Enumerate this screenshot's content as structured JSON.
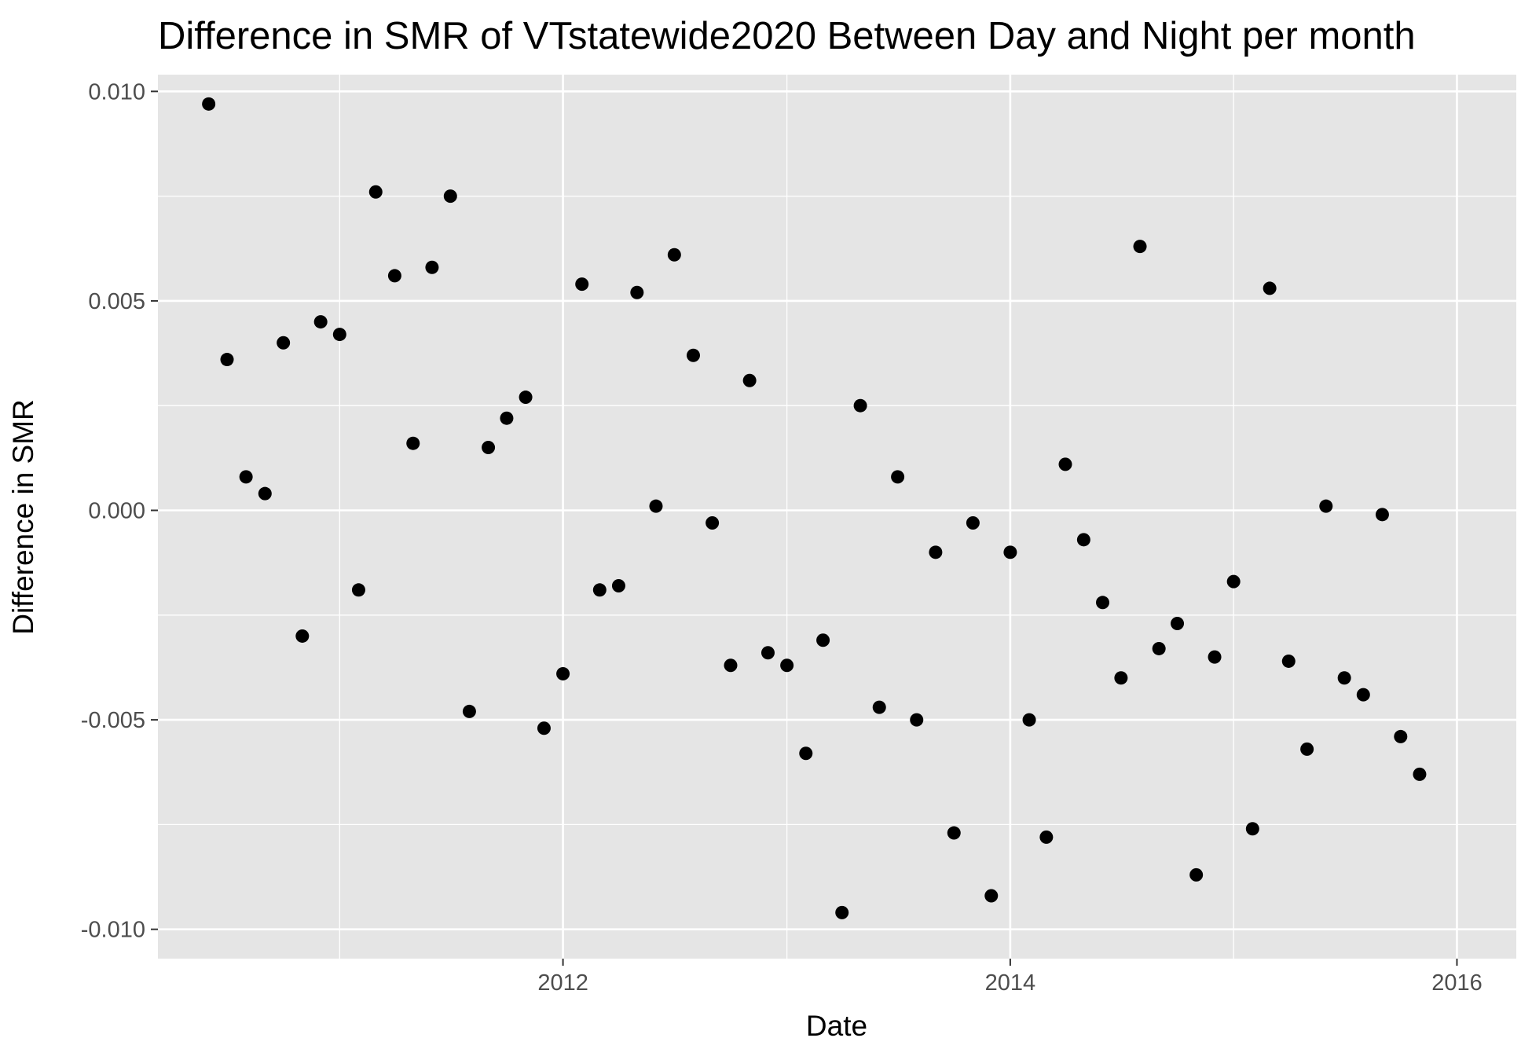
{
  "chart_data": {
    "type": "scatter",
    "title": "Difference in SMR of VTstatewide2020 Between Day and Night per month",
    "xlabel": "Date",
    "ylabel": "Difference in SMR",
    "x_ticks": [
      "2012",
      "2014",
      "2016"
    ],
    "y_ticks": [
      "0.010",
      "0.005",
      "0.000",
      "-0.005",
      "-0.010"
    ],
    "xlim": [
      "2010-03-10",
      "2016-04-07"
    ],
    "ylim": [
      -0.0107,
      0.0104
    ],
    "grid": true,
    "legend": "none",
    "point_color": "#000000",
    "panel_background": "#e5e5e5",
    "gridline_color": "#ffffff",
    "points": [
      {
        "x": "2010-06-01",
        "y": 0.0097
      },
      {
        "x": "2010-07-01",
        "y": 0.0036
      },
      {
        "x": "2010-08-01",
        "y": 0.0008
      },
      {
        "x": "2010-09-01",
        "y": 0.0004
      },
      {
        "x": "2010-10-01",
        "y": 0.004
      },
      {
        "x": "2010-11-01",
        "y": -0.003
      },
      {
        "x": "2010-12-01",
        "y": 0.0045
      },
      {
        "x": "2011-01-01",
        "y": 0.0042
      },
      {
        "x": "2011-02-01",
        "y": -0.0019
      },
      {
        "x": "2011-03-01",
        "y": 0.0076
      },
      {
        "x": "2011-04-01",
        "y": 0.0056
      },
      {
        "x": "2011-05-01",
        "y": 0.0016
      },
      {
        "x": "2011-06-01",
        "y": 0.0058
      },
      {
        "x": "2011-07-01",
        "y": 0.0075
      },
      {
        "x": "2011-08-01",
        "y": -0.0048
      },
      {
        "x": "2011-09-01",
        "y": 0.0015
      },
      {
        "x": "2011-10-01",
        "y": 0.0022
      },
      {
        "x": "2011-11-01",
        "y": 0.0027
      },
      {
        "x": "2011-12-01",
        "y": -0.0052
      },
      {
        "x": "2012-01-01",
        "y": -0.0039
      },
      {
        "x": "2012-02-01",
        "y": 0.0054
      },
      {
        "x": "2012-03-01",
        "y": -0.0019
      },
      {
        "x": "2012-04-01",
        "y": -0.0018
      },
      {
        "x": "2012-05-01",
        "y": 0.0052
      },
      {
        "x": "2012-06-01",
        "y": 0.0001
      },
      {
        "x": "2012-07-01",
        "y": 0.0061
      },
      {
        "x": "2012-08-01",
        "y": 0.0037
      },
      {
        "x": "2012-09-01",
        "y": -0.0003
      },
      {
        "x": "2012-10-01",
        "y": -0.0037
      },
      {
        "x": "2012-11-01",
        "y": 0.0031
      },
      {
        "x": "2012-12-01",
        "y": -0.0034
      },
      {
        "x": "2013-01-01",
        "y": -0.0037
      },
      {
        "x": "2013-02-01",
        "y": -0.0058
      },
      {
        "x": "2013-03-01",
        "y": -0.0031
      },
      {
        "x": "2013-04-01",
        "y": -0.0096
      },
      {
        "x": "2013-05-01",
        "y": 0.0025
      },
      {
        "x": "2013-06-01",
        "y": -0.0047
      },
      {
        "x": "2013-07-01",
        "y": 0.0008
      },
      {
        "x": "2013-08-01",
        "y": -0.005
      },
      {
        "x": "2013-09-01",
        "y": -0.001
      },
      {
        "x": "2013-10-01",
        "y": -0.0077
      },
      {
        "x": "2013-11-01",
        "y": -0.0003
      },
      {
        "x": "2013-12-01",
        "y": -0.0092
      },
      {
        "x": "2014-01-01",
        "y": -0.001
      },
      {
        "x": "2014-02-01",
        "y": -0.005
      },
      {
        "x": "2014-03-01",
        "y": -0.0078
      },
      {
        "x": "2014-04-01",
        "y": 0.0011
      },
      {
        "x": "2014-05-01",
        "y": -0.0007
      },
      {
        "x": "2014-06-01",
        "y": -0.0022
      },
      {
        "x": "2014-07-01",
        "y": -0.004
      },
      {
        "x": "2014-08-01",
        "y": 0.0063
      },
      {
        "x": "2014-09-01",
        "y": -0.0033
      },
      {
        "x": "2014-10-01",
        "y": -0.0027
      },
      {
        "x": "2014-11-01",
        "y": -0.0087
      },
      {
        "x": "2014-12-01",
        "y": -0.0035
      },
      {
        "x": "2015-01-01",
        "y": -0.0017
      },
      {
        "x": "2015-02-01",
        "y": -0.0076
      },
      {
        "x": "2015-03-01",
        "y": 0.0053
      },
      {
        "x": "2015-04-01",
        "y": -0.0036
      },
      {
        "x": "2015-05-01",
        "y": -0.0057
      },
      {
        "x": "2015-06-01",
        "y": 0.0001
      },
      {
        "x": "2015-07-01",
        "y": -0.004
      },
      {
        "x": "2015-08-01",
        "y": -0.0044
      },
      {
        "x": "2015-09-01",
        "y": -0.0001
      },
      {
        "x": "2015-10-01",
        "y": -0.0054
      },
      {
        "x": "2015-11-01",
        "y": -0.0063
      }
    ]
  }
}
